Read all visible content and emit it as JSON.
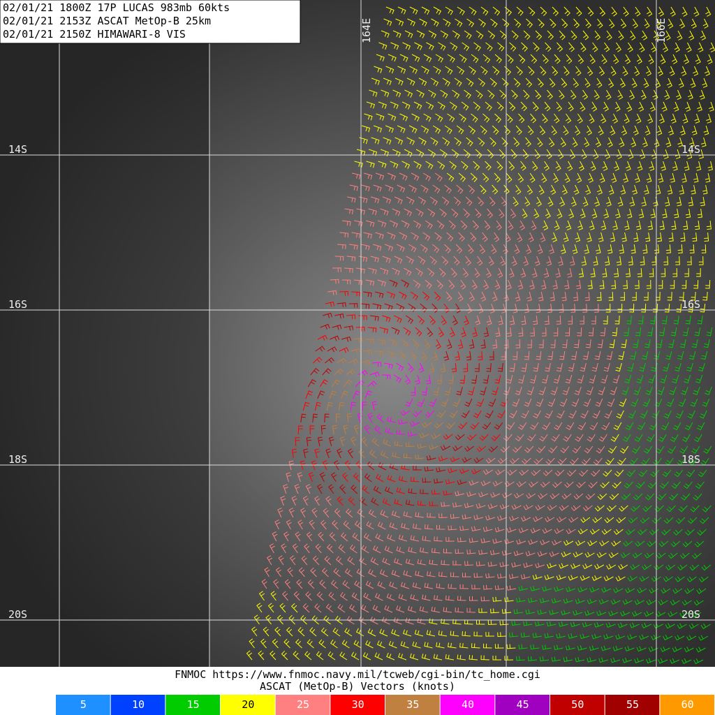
{
  "header": {
    "lines": [
      "02/01/21 1800Z  17P LUCAS 983mb 60kts",
      "02/01/21 2153Z  ASCAT MetOp-B 25km",
      "02/01/21 2150Z  HIMAWARI-8 VIS"
    ]
  },
  "grid": {
    "longitude_labels": [
      "164E",
      "166E"
    ],
    "latitude_labels": [
      "14S",
      "16S",
      "18S",
      "20S"
    ]
  },
  "footer": {
    "source": "FNMOC https://www.fnmoc.navy.mil/tcweb/cgi-bin/tc_home.cgi",
    "caption": "ASCAT (MetOp-B) Vectors (knots)"
  },
  "legend": {
    "items": [
      {
        "value": 5,
        "color": "#1e90ff"
      },
      {
        "value": 10,
        "color": "#0040ff"
      },
      {
        "value": 15,
        "color": "#00cc00"
      },
      {
        "value": 20,
        "color": "#ffff00"
      },
      {
        "value": 25,
        "color": "#ff8080"
      },
      {
        "value": 30,
        "color": "#ff0000"
      },
      {
        "value": 35,
        "color": "#c08040"
      },
      {
        "value": 40,
        "color": "#ff00ff"
      },
      {
        "value": 45,
        "color": "#a000c0"
      },
      {
        "value": 50,
        "color": "#c00000"
      },
      {
        "value": 55,
        "color": "#a00000"
      },
      {
        "value": 60,
        "color": "#ff9900"
      }
    ]
  }
}
